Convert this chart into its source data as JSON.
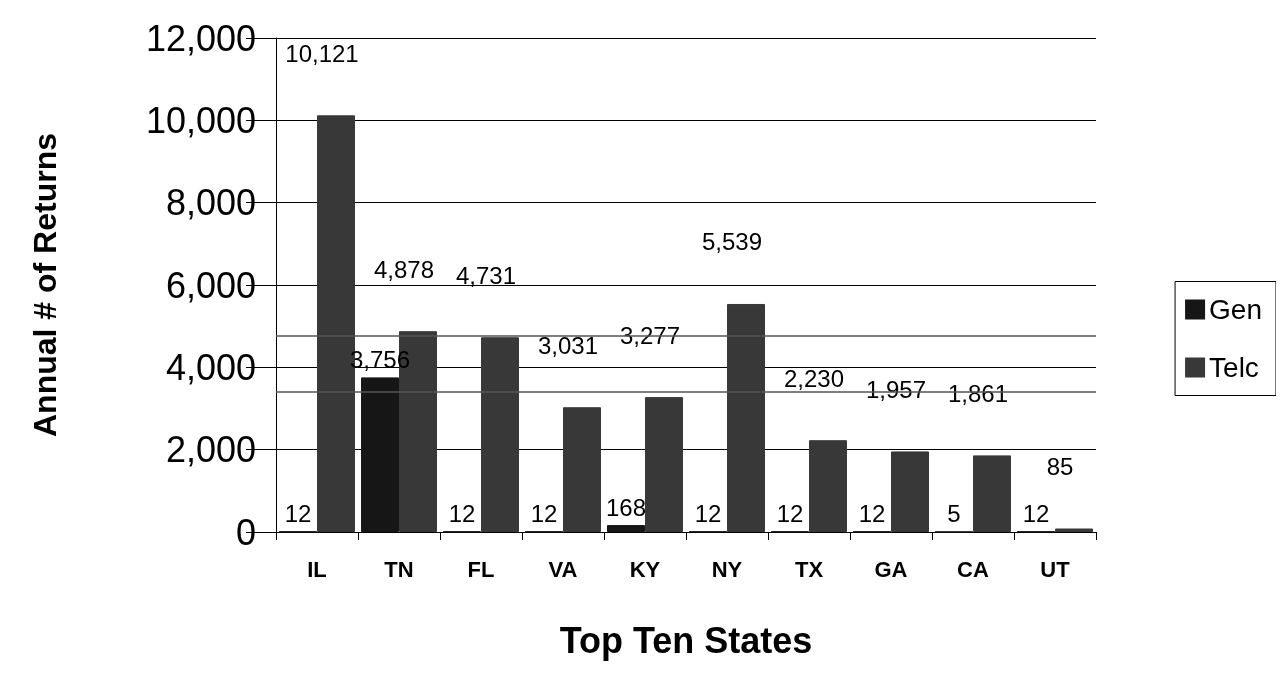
{
  "chart_data": {
    "type": "bar",
    "xlabel": "Top Ten States",
    "ylabel": "Annual # of Returns",
    "categories": [
      "IL",
      "TN",
      "FL",
      "VA",
      "KY",
      "NY",
      "TX",
      "GA",
      "CA",
      "UT"
    ],
    "series": [
      {
        "name": "Gen",
        "color": "#161616",
        "values": [
          12,
          3756,
          12,
          12,
          168,
          12,
          12,
          12,
          5,
          12
        ],
        "value_labels": [
          "12",
          "3,756",
          "12",
          "12",
          "168",
          "12",
          "12",
          "12",
          "5",
          "12"
        ]
      },
      {
        "name": "Telc",
        "color": "#383838",
        "values": [
          10121,
          4878,
          4731,
          3031,
          3277,
          5539,
          2230,
          1957,
          1861,
          85
        ],
        "value_labels": [
          "10,121",
          "4,878",
          "4,731",
          "3,031",
          "3,277",
          "5,539",
          "2,230",
          "1,957",
          "1,861",
          "85"
        ]
      }
    ],
    "ylim": [
      0,
      12000
    ],
    "yticks": [
      0,
      {
        "value": 2000,
        "label": "2,000"
      },
      {
        "value": 4000,
        "label": "4,000"
      },
      {
        "value": 6000,
        "label": "6,000"
      },
      {
        "value": 8000,
        "label": "8,000"
      },
      {
        "value": 10000,
        "label": "10,000"
      },
      {
        "value": 12000,
        "label": "12,000"
      }
    ],
    "ref_lines": [
      {
        "axis": "y",
        "value": 4760,
        "color": "#555555"
      },
      {
        "axis": "y",
        "value": 3400,
        "color": "#555555"
      }
    ],
    "grid": "y",
    "legend": "right"
  }
}
